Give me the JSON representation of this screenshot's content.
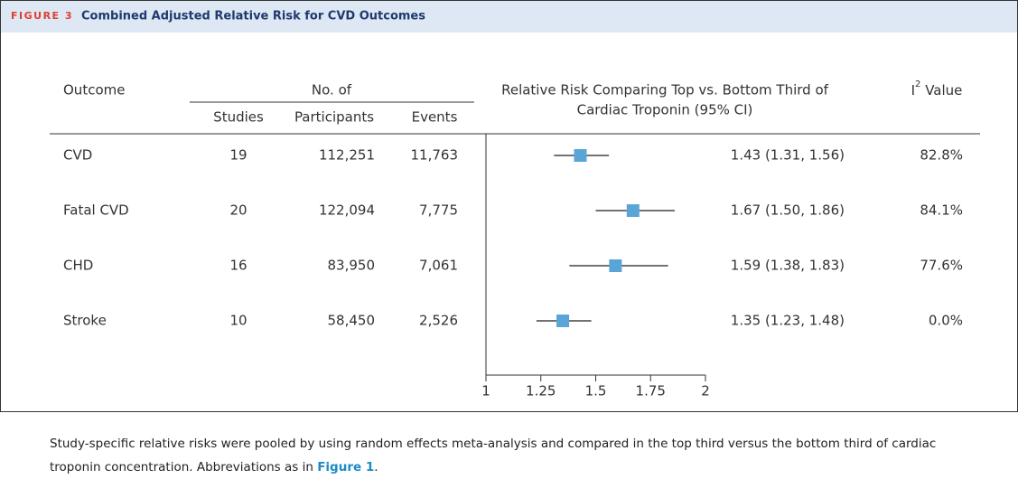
{
  "chart_data": {
    "type": "forest",
    "figure_label": "FIGURE 3",
    "title": "Combined Adjusted Relative Risk for CVD Outcomes",
    "headers": {
      "outcome": "Outcome",
      "no_of": "No. of",
      "studies": "Studies",
      "participants": "Participants",
      "events": "Events",
      "rr_line1": "Relative Risk Comparing Top vs. Bottom Third of",
      "rr_line2": "Cardiac Troponin (95% CI)",
      "i2_base": "I",
      "i2_sup": "2",
      "i2_rest": " Value"
    },
    "categories": [
      "CVD",
      "Fatal CVD",
      "CHD",
      "Stroke"
    ],
    "studies": [
      "19",
      "20",
      "16",
      "10"
    ],
    "participants": [
      "112,251",
      "122,094",
      "83,950",
      "58,450"
    ],
    "events": [
      "11,763",
      "7,775",
      "7,061",
      "2,526"
    ],
    "values": [
      1.43,
      1.67,
      1.59,
      1.35
    ],
    "lower": [
      1.31,
      1.5,
      1.38,
      1.23
    ],
    "upper": [
      1.56,
      1.86,
      1.83,
      1.48
    ],
    "value_labels": [
      "1.43 (1.31, 1.56)",
      "1.67 (1.50, 1.86)",
      "1.59 (1.38, 1.83)",
      "1.35 (1.23, 1.48)"
    ],
    "i2": [
      "82.8%",
      "84.1%",
      "77.6%",
      "0.0%"
    ],
    "color": "#5aa5d8",
    "xlim": [
      1,
      2
    ],
    "xticks": [
      1,
      1.25,
      1.5,
      1.75,
      2
    ],
    "caption": "Study-specific relative risks were pooled by using random effects meta-analysis and compared in the top third versus the bottom third of cardiac troponin concentration. Abbreviations as in ",
    "caption_link": "Figure 1",
    "caption_end": "."
  }
}
